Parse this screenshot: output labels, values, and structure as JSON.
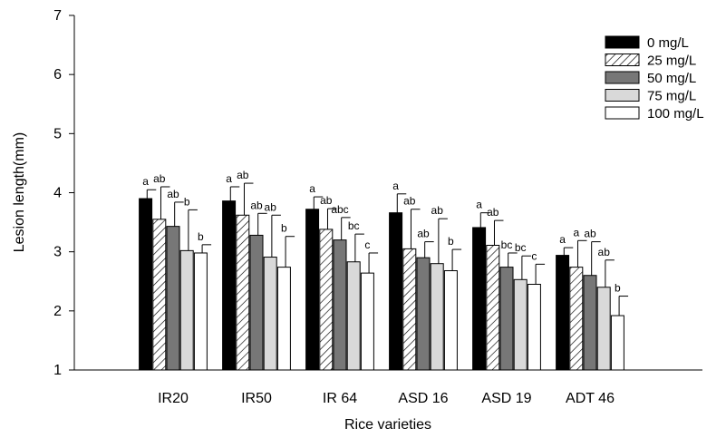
{
  "chart_data": {
    "type": "bar",
    "xlabel": "Rice varieties",
    "ylabel": "Lesion length(mm)",
    "ylim": [
      1,
      7
    ],
    "yticks": [
      1,
      2,
      3,
      4,
      5,
      6,
      7
    ],
    "categories": [
      "IR20",
      "IR50",
      "IR 64",
      "ASD 16",
      "ASD 19",
      "ADT 46"
    ],
    "legend_position": "top-right",
    "series": [
      {
        "name": "0 mg/L",
        "style": "solid",
        "color": "#000000",
        "values": [
          3.9,
          3.86,
          3.72,
          3.66,
          3.41,
          2.94
        ],
        "errors": [
          0.15,
          0.24,
          0.21,
          0.32,
          0.25,
          0.13
        ],
        "labels": [
          "a",
          "a",
          "a",
          "a",
          "a",
          "a"
        ]
      },
      {
        "name": "25 mg/L",
        "style": "hatch",
        "color": "#ffffff",
        "values": [
          3.55,
          3.62,
          3.38,
          3.05,
          3.11,
          2.74
        ],
        "errors": [
          0.55,
          0.54,
          0.35,
          0.67,
          0.42,
          0.45
        ],
        "labels": [
          "ab",
          "ab",
          "ab",
          "ab",
          "ab",
          "a"
        ]
      },
      {
        "name": "50 mg/L",
        "style": "solid",
        "color": "#777777",
        "values": [
          3.43,
          3.28,
          3.2,
          2.9,
          2.74,
          2.6
        ],
        "errors": [
          0.41,
          0.37,
          0.38,
          0.27,
          0.24,
          0.57
        ],
        "labels": [
          "ab",
          "ab",
          "abc",
          "ab",
          "bc",
          "ab"
        ]
      },
      {
        "name": "75 mg/L",
        "style": "solid",
        "color": "#d9d9d9",
        "values": [
          3.02,
          2.91,
          2.83,
          2.8,
          2.53,
          2.4
        ],
        "errors": [
          0.69,
          0.71,
          0.47,
          0.76,
          0.4,
          0.46
        ],
        "labels": [
          "b",
          "ab",
          "bc",
          "ab",
          "bc",
          "ab"
        ]
      },
      {
        "name": "100 mg/L",
        "style": "solid",
        "color": "#ffffff",
        "values": [
          2.98,
          2.74,
          2.64,
          2.68,
          2.45,
          1.92
        ],
        "errors": [
          0.14,
          0.52,
          0.34,
          0.36,
          0.34,
          0.33
        ],
        "labels": [
          "b",
          "b",
          "c",
          "b",
          "c",
          "b"
        ]
      }
    ]
  }
}
